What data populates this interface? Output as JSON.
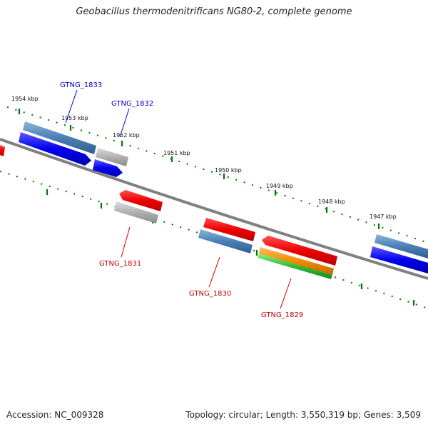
{
  "title": "Geobacillus thermodenitrificans NG80-2, complete genome",
  "footer": {
    "accession": "Accession: NC_009328",
    "summary": "Topology: circular; Length: 3,550,319 bp; Genes: 3,509"
  },
  "axis": {
    "ticks": [
      {
        "label": "1954 kbp"
      },
      {
        "label": "1953 kbp"
      },
      {
        "label": "1952 kbp"
      },
      {
        "label": "1951 kbp"
      },
      {
        "label": "1950 kbp"
      },
      {
        "label": "1949 kbp"
      },
      {
        "label": "1948 kbp"
      },
      {
        "label": "1947 kbp"
      }
    ]
  },
  "genes": [
    {
      "name": "GTNG_1833",
      "strand": "forward",
      "label_color": "#0000cc"
    },
    {
      "name": "GTNG_1832",
      "strand": "forward",
      "label_color": "#0000cc"
    },
    {
      "name": "GTNG_1831",
      "strand": "reverse",
      "label_color": "#cc0000"
    },
    {
      "name": "GTNG_1830",
      "strand": "reverse",
      "label_color": "#cc0000"
    },
    {
      "name": "GTNG_1829",
      "strand": "reverse",
      "label_color": "#cc0000"
    }
  ],
  "colors": {
    "forward_cds": "#0000ee",
    "reverse_cds": "#ee0000",
    "feature_steel": "#4a7fb5",
    "feature_gray": "#aaaaaa",
    "feature_orange": "#f08c00",
    "feature_green": "#33bb33",
    "backbone": "#808080",
    "tick_green": "#007700"
  }
}
